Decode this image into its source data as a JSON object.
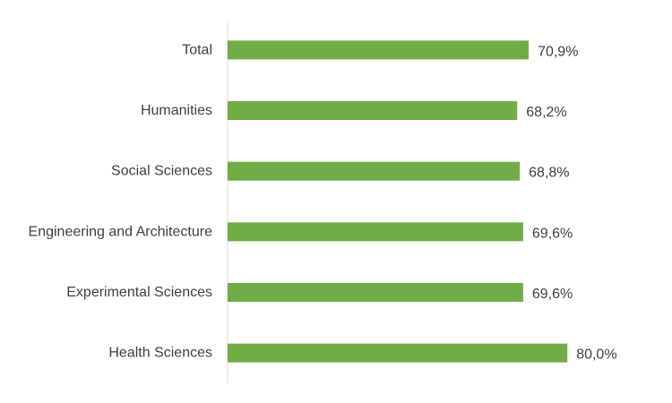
{
  "chart_data": {
    "type": "bar",
    "orientation": "horizontal",
    "categories": [
      "Total",
      "Humanities",
      "Social Sciences",
      "Engineering and Architecture",
      "Experimental Sciences",
      "Health Sciences"
    ],
    "values": [
      70.9,
      68.2,
      68.8,
      69.6,
      69.6,
      80.0
    ],
    "value_labels": [
      "70,9%",
      "68,2%",
      "68,8%",
      "69,6%",
      "69,6%",
      "80,0%"
    ],
    "title": "",
    "xlabel": "",
    "ylabel": "",
    "grid": false,
    "legend": "none",
    "bar_color": "#70AD47",
    "axis_color": "#D9D9D9",
    "text_color": "#404040"
  }
}
